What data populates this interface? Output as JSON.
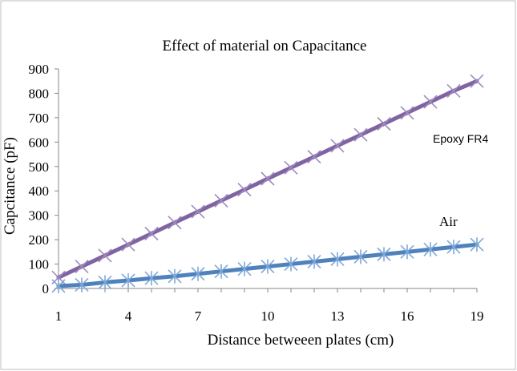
{
  "chart_data": {
    "type": "line",
    "title": "Effect of material on Capacitance",
    "xlabel": "Distance betweeen plates (cm)",
    "ylabel": "Capcitance (pF)",
    "x": [
      1,
      2,
      3,
      4,
      5,
      6,
      7,
      8,
      9,
      10,
      11,
      12,
      13,
      14,
      15,
      16,
      17,
      18,
      19
    ],
    "xticks": [
      1,
      4,
      7,
      10,
      13,
      16,
      19
    ],
    "yticks": [
      0,
      100,
      200,
      300,
      400,
      500,
      600,
      700,
      800,
      900
    ],
    "xlim": [
      1,
      19
    ],
    "ylim": [
      0,
      900
    ],
    "grid": false,
    "series": [
      {
        "name": "Epoxy FR4",
        "color": "#8064A2",
        "marker": "x",
        "values": [
          45,
          90,
          135,
          180,
          225,
          270,
          315,
          360,
          405,
          450,
          495,
          540,
          585,
          630,
          675,
          720,
          765,
          810,
          850
        ]
      },
      {
        "name": "Air",
        "color": "#4F81BD",
        "marker": "star",
        "values": [
          10,
          15,
          25,
          33,
          42,
          50,
          60,
          70,
          80,
          90,
          100,
          110,
          120,
          130,
          140,
          150,
          160,
          170,
          180
        ]
      }
    ]
  }
}
